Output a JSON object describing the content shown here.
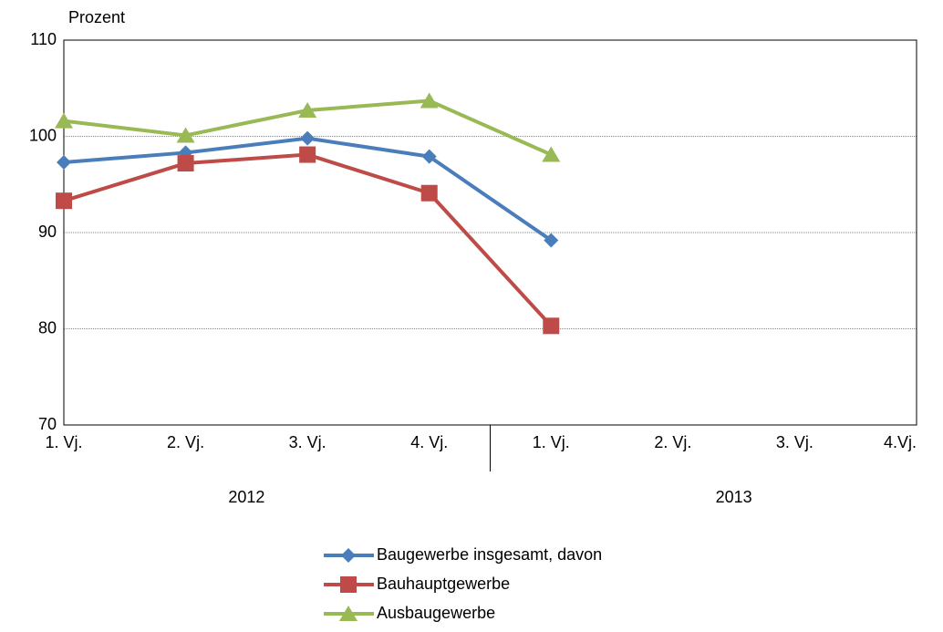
{
  "chart_data": {
    "type": "line",
    "ylabel": "Prozent",
    "categories": [
      "1. Vj.",
      "2. Vj.",
      "3. Vj.",
      "4. Vj.",
      "1. Vj.",
      "2. Vj.",
      "3. Vj.",
      "4.Vj."
    ],
    "groups": [
      "2012",
      "2013"
    ],
    "series": [
      {
        "name": "Baugewerbe insgesamt, davon",
        "color": "#4a7ebb",
        "marker": "diamond",
        "values": [
          97.3,
          98.3,
          99.8,
          97.9,
          89.2,
          null,
          null,
          null
        ]
      },
      {
        "name": "Bauhauptgewerbe",
        "color": "#be4b48",
        "marker": "square",
        "values": [
          93.3,
          97.2,
          98.1,
          94.1,
          80.3,
          null,
          null,
          null
        ]
      },
      {
        "name": "Ausbaugewerbe",
        "color": "#98b954",
        "marker": "triangle",
        "values": [
          101.6,
          100.1,
          102.7,
          103.7,
          98.1,
          null,
          null,
          null
        ]
      }
    ],
    "ylim": [
      70,
      110
    ],
    "yticks": [
      70,
      80,
      90,
      100,
      110
    ],
    "grid": true,
    "legend": "bottom"
  }
}
